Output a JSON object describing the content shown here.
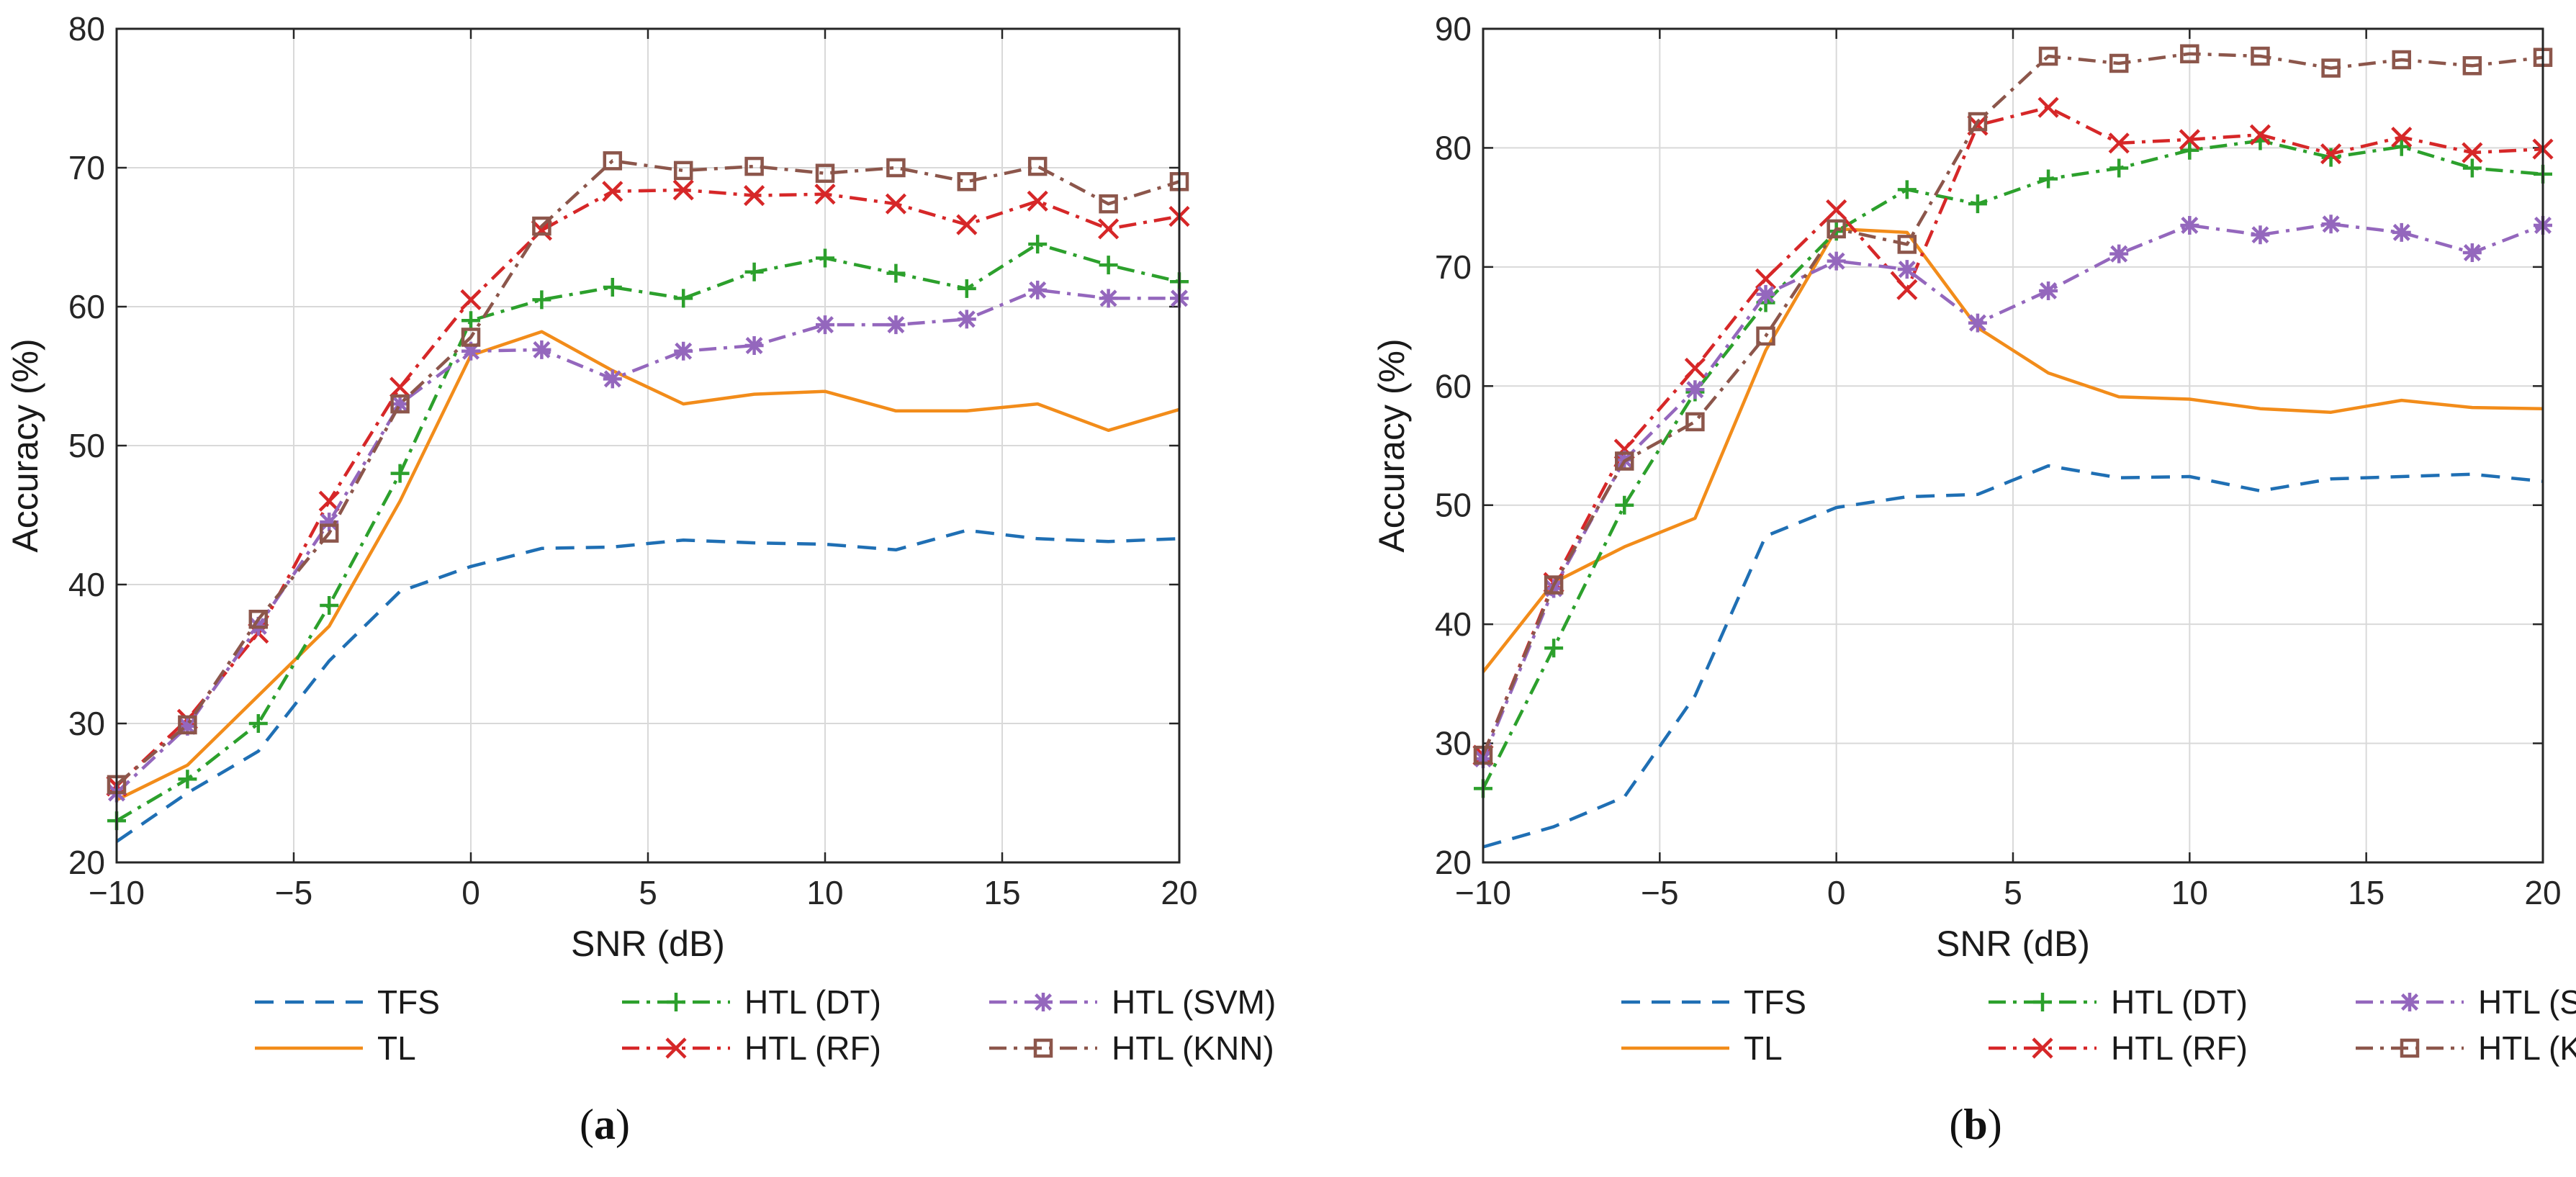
{
  "styles": {
    "TFS": {
      "color": "#1f6fb4",
      "dash": "dashed",
      "marker": "none"
    },
    "TL": {
      "color": "#f28c1a",
      "dash": "solid",
      "marker": "none"
    },
    "HTL (DT)": {
      "color": "#2ca02c",
      "dash": "dashdot",
      "marker": "plus"
    },
    "HTL (RF)": {
      "color": "#d62728",
      "dash": "dashdot",
      "marker": "x"
    },
    "HTL (SVM)": {
      "color": "#9467bd",
      "dash": "dashdot",
      "marker": "asterisk"
    },
    "HTL (KNN)": {
      "color": "#8c564b",
      "dash": "dashdot",
      "marker": "square"
    }
  },
  "chart_data": [
    {
      "type": "line",
      "caption": "(a)",
      "caption_letter": "a",
      "xlabel": "SNR (dB)",
      "ylabel": "Accuracy (%)",
      "xlim": [
        -10,
        20
      ],
      "ylim": [
        20,
        80
      ],
      "xticks": [
        -10,
        -5,
        0,
        5,
        10,
        15,
        20
      ],
      "yticks": [
        20,
        30,
        40,
        50,
        60,
        70,
        80
      ],
      "xtick_labels": [
        "−10",
        "−5",
        "0",
        "5",
        "10",
        "15",
        "20"
      ],
      "ytick_labels": [
        "20",
        "30",
        "40",
        "50",
        "60",
        "70",
        "80"
      ],
      "grid": true,
      "legend": [
        "TFS",
        "HTL (DT)",
        "HTL (SVM)",
        "TL",
        "HTL (RF)",
        "HTL (KNN)"
      ],
      "x": [
        -10,
        -8,
        -6,
        -4,
        -2,
        0,
        2,
        4,
        6,
        8,
        10,
        12,
        14,
        16,
        18,
        20
      ],
      "series": [
        {
          "name": "TFS",
          "values": [
            21.5,
            25,
            28,
            34.5,
            39.5,
            41.3,
            42.6,
            42.7,
            43.2,
            43.0,
            42.9,
            42.5,
            43.9,
            43.3,
            43.1,
            43.3
          ]
        },
        {
          "name": "TL",
          "values": [
            24.5,
            27,
            32,
            37,
            46,
            56.5,
            58.2,
            55.4,
            53,
            53.7,
            53.9,
            52.5,
            52.5,
            53,
            51.1,
            52.6
          ]
        },
        {
          "name": "HTL (DT)",
          "values": [
            23,
            26,
            30,
            38.5,
            48,
            59,
            60.5,
            61.4,
            60.6,
            62.5,
            63.5,
            62.4,
            61.3,
            64.5,
            63,
            61.8
          ]
        },
        {
          "name": "HTL (RF)",
          "values": [
            25.5,
            30.3,
            36.5,
            46,
            54.2,
            60.5,
            65.5,
            68.3,
            68.4,
            68,
            68.1,
            67.4,
            65.9,
            67.6,
            65.6,
            66.5
          ]
        },
        {
          "name": "HTL (SVM)",
          "values": [
            25,
            29.8,
            37,
            44.5,
            53,
            56.8,
            56.9,
            54.8,
            56.8,
            57.2,
            58.7,
            58.7,
            59.1,
            61.2,
            60.6,
            60.6
          ]
        },
        {
          "name": "HTL (KNN)",
          "values": [
            25.6,
            29.9,
            37.5,
            43.7,
            53,
            57.8,
            65.8,
            70.5,
            69.8,
            70.1,
            69.6,
            70,
            69,
            70.1,
            67.4,
            69
          ]
        }
      ]
    },
    {
      "type": "line",
      "caption": "(b)",
      "caption_letter": "b",
      "xlabel": "SNR (dB)",
      "ylabel": "Accuracy (%)",
      "xlim": [
        -10,
        20
      ],
      "ylim": [
        20,
        90
      ],
      "xticks": [
        -10,
        -5,
        0,
        5,
        10,
        15,
        20
      ],
      "yticks": [
        20,
        30,
        40,
        50,
        60,
        70,
        80,
        90
      ],
      "xtick_labels": [
        "−10",
        "−5",
        "0",
        "5",
        "10",
        "15",
        "20"
      ],
      "ytick_labels": [
        "20",
        "30",
        "40",
        "50",
        "60",
        "70",
        "80",
        "90"
      ],
      "grid": true,
      "legend": [
        "TFS",
        "HTL (DT)",
        "HTL (SVM)",
        "TL",
        "HTL (RF)",
        "HTL (KNN)"
      ],
      "x": [
        -10,
        -8,
        -6,
        -4,
        -2,
        0,
        2,
        4,
        6,
        8,
        10,
        12,
        14,
        16,
        18,
        20
      ],
      "series": [
        {
          "name": "TFS",
          "values": [
            21.3,
            23,
            25.5,
            34,
            47.4,
            49.8,
            50.7,
            50.9,
            53.3,
            52.3,
            52.4,
            51.2,
            52.2,
            52.4,
            52.6,
            52
          ],
          "x": [
            -10,
            -8,
            -6,
            -4,
            -2,
            0,
            2,
            4,
            6,
            8,
            10,
            12,
            14,
            16,
            18,
            20
          ]
        },
        {
          "name": "TL",
          "values": [
            36,
            43.5,
            46.5,
            48.9,
            63,
            73.2,
            72.9,
            64.9,
            61.1,
            59.1,
            58.9,
            58.1,
            57.8,
            58.8,
            58.2,
            58.1
          ]
        },
        {
          "name": "HTL (DT)",
          "values": [
            26.2,
            38,
            50,
            59.5,
            67,
            73,
            76.5,
            75.3,
            77.4,
            78.3,
            79.8,
            80.6,
            79.2,
            80.1,
            78.3,
            77.8
          ]
        },
        {
          "name": "HTL (RF)",
          "values": [
            29,
            43.5,
            54.7,
            61.5,
            69,
            74.8,
            68.1,
            81.9,
            83.4,
            80.4,
            80.7,
            81.1,
            79.5,
            80.9,
            79.6,
            79.9
          ]
        },
        {
          "name": "HTL (SVM)",
          "values": [
            28.7,
            43,
            53.8,
            59.7,
            67.7,
            70.5,
            69.8,
            65.3,
            68,
            71.1,
            73.5,
            72.7,
            73.6,
            72.9,
            71.2,
            73.5
          ]
        },
        {
          "name": "HTL (KNN)",
          "values": [
            29,
            43.3,
            53.7,
            57,
            64.2,
            73.2,
            71.9,
            82.2,
            87.7,
            87.1,
            87.9,
            87.7,
            86.7,
            87.4,
            86.9,
            87.6
          ]
        }
      ]
    }
  ]
}
